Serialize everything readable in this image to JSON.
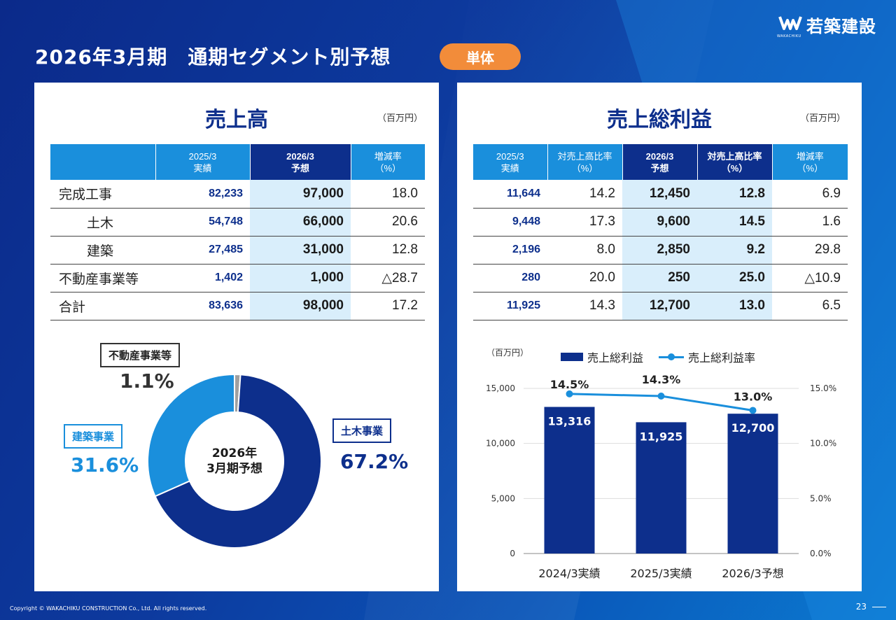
{
  "header": {
    "title": "2026年3月期　通期セグメント別予想",
    "badge": "単体",
    "logo_text": "若築建設",
    "logo_sub": "WAKACHIKU"
  },
  "sales": {
    "title": "売上高",
    "unit": "（百万円）",
    "columns": [
      "",
      "2025/3\n実績",
      "2026/3\n予想",
      "増減率\n（%）"
    ],
    "rows": [
      {
        "label": "完成工事",
        "indent": false,
        "prev": "82,233",
        "fcst": "97,000",
        "rate": "18.0"
      },
      {
        "label": "土木",
        "indent": true,
        "prev": "54,748",
        "fcst": "66,000",
        "rate": "20.6"
      },
      {
        "label": "建築",
        "indent": true,
        "prev": "27,485",
        "fcst": "31,000",
        "rate": "12.8"
      },
      {
        "label": "不動産事業等",
        "indent": false,
        "prev": "1,402",
        "fcst": "1,000",
        "rate": "△28.7"
      },
      {
        "label": "合計",
        "indent": false,
        "prev": "83,636",
        "fcst": "98,000",
        "rate": "17.2"
      }
    ]
  },
  "gross_profit": {
    "title": "売上総利益",
    "unit": "（百万円）",
    "columns": [
      "2025/3\n実績",
      "対売上高比率\n（%）",
      "2026/3\n予想",
      "対売上高比率\n（%）",
      "増減率\n（%）"
    ],
    "rows": [
      {
        "prev": "11,644",
        "prev_ratio": "14.2",
        "fcst": "12,450",
        "fcst_ratio": "12.8",
        "rate": "6.9"
      },
      {
        "prev": "9,448",
        "prev_ratio": "17.3",
        "fcst": "9,600",
        "fcst_ratio": "14.5",
        "rate": "1.6"
      },
      {
        "prev": "2,196",
        "prev_ratio": "8.0",
        "fcst": "2,850",
        "fcst_ratio": "9.2",
        "rate": "29.8"
      },
      {
        "prev": "280",
        "prev_ratio": "20.0",
        "fcst": "250",
        "fcst_ratio": "25.0",
        "rate": "△10.9"
      },
      {
        "prev": "11,925",
        "prev_ratio": "14.3",
        "fcst": "12,700",
        "fcst_ratio": "13.0",
        "rate": "6.5"
      }
    ]
  },
  "chart_data": [
    {
      "type": "pie",
      "center_label": [
        "2026年",
        "3月期予想"
      ],
      "slices": [
        {
          "name": "土木事業",
          "value": 67.2,
          "label": "67.2%",
          "color": "#0d2f8c"
        },
        {
          "name": "建築事業",
          "value": 31.6,
          "label": "31.6%",
          "color": "#1a8fdc"
        },
        {
          "name": "不動産事業等",
          "value": 1.1,
          "label": "1.1%",
          "color": "#a0a0a0"
        }
      ]
    },
    {
      "type": "bar",
      "categories": [
        "2024/3実績",
        "2025/3実績",
        "2026/3予想"
      ],
      "unit": "（百万円）",
      "series": [
        {
          "name": "売上総利益",
          "type": "bar",
          "values": [
            13316,
            11925,
            12700
          ],
          "labels": [
            "13,316",
            "11,925",
            "12,700"
          ],
          "color": "#0d2f8c"
        },
        {
          "name": "売上総利益率",
          "type": "line",
          "axis": "right",
          "values": [
            14.5,
            14.3,
            13.0
          ],
          "labels": [
            "14.5%",
            "14.3%",
            "13.0%"
          ],
          "color": "#1a8fdc"
        }
      ],
      "ylim": [
        0,
        15000
      ],
      "yticks": [
        0,
        5000,
        10000,
        15000
      ],
      "ytick_labels": [
        "0",
        "5,000",
        "10,000",
        "15,000"
      ],
      "y2lim": [
        0,
        15
      ],
      "y2ticks": [
        0,
        5,
        10,
        15
      ],
      "y2tick_labels": [
        "0.0%",
        "5.0%",
        "10.0%",
        "15.0%"
      ],
      "grid": true,
      "legend": "top"
    }
  ],
  "footer": {
    "copyright": "Copyright © WAKACHIKU CONSTRUCTION Co., Ltd. All rights reserved.",
    "page": "23"
  }
}
